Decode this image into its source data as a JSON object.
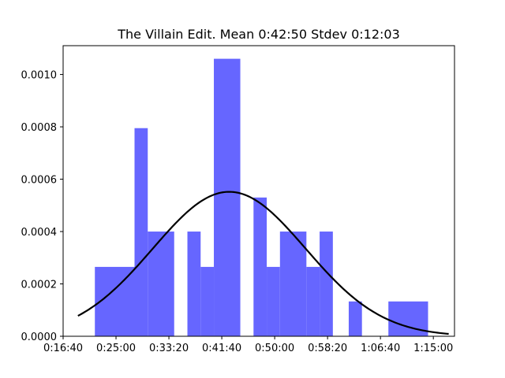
{
  "chart_data": {
    "type": "bar",
    "title": "The Villain Edit. Mean 0:42:50 Stdev 0:12:03",
    "xlabel": "",
    "ylabel": "",
    "x_unit": "seconds",
    "xlim": [
      1000,
      4700
    ],
    "ylim": [
      0,
      0.00111
    ],
    "x_ticks": [
      {
        "value": 1000,
        "label": "0:16:40"
      },
      {
        "value": 1500,
        "label": "0:25:00"
      },
      {
        "value": 2000,
        "label": "0:33:20"
      },
      {
        "value": 2500,
        "label": "0:41:40"
      },
      {
        "value": 3000,
        "label": "0:50:00"
      },
      {
        "value": 3500,
        "label": "0:58:20"
      },
      {
        "value": 4000,
        "label": "1:06:40"
      },
      {
        "value": 4500,
        "label": "1:15:00"
      }
    ],
    "y_ticks": [
      {
        "value": 0,
        "label": "0.0000"
      },
      {
        "value": 0.0002,
        "label": "0.0002"
      },
      {
        "value": 0.0004,
        "label": "0.0004"
      },
      {
        "value": 0.0006,
        "label": "0.0006"
      },
      {
        "value": 0.0008,
        "label": "0.0008"
      },
      {
        "value": 0.001,
        "label": "0.0010"
      }
    ],
    "histogram": {
      "color": "#6666ff",
      "bins": [
        {
          "x0": 1300,
          "x1": 1675,
          "y": 0.000265
        },
        {
          "x0": 1675,
          "x1": 1800,
          "y": 0.000795
        },
        {
          "x0": 1800,
          "x1": 2050,
          "y": 0.0004
        },
        {
          "x0": 2175,
          "x1": 2300,
          "y": 0.0004
        },
        {
          "x0": 2300,
          "x1": 2425,
          "y": 0.000265
        },
        {
          "x0": 2425,
          "x1": 2675,
          "y": 0.00106
        },
        {
          "x0": 2800,
          "x1": 2925,
          "y": 0.00053
        },
        {
          "x0": 2925,
          "x1": 3050,
          "y": 0.000265
        },
        {
          "x0": 3050,
          "x1": 3300,
          "y": 0.0004
        },
        {
          "x0": 3300,
          "x1": 3425,
          "y": 0.000265
        },
        {
          "x0": 3425,
          "x1": 3550,
          "y": 0.0004
        },
        {
          "x0": 3700,
          "x1": 3825,
          "y": 0.000133
        },
        {
          "x0": 4075,
          "x1": 4450,
          "y": 0.000133
        }
      ]
    },
    "normal_curve": {
      "color": "#000000",
      "mean": 2570,
      "stdev": 723,
      "x_range": [
        1140,
        4645
      ]
    }
  }
}
